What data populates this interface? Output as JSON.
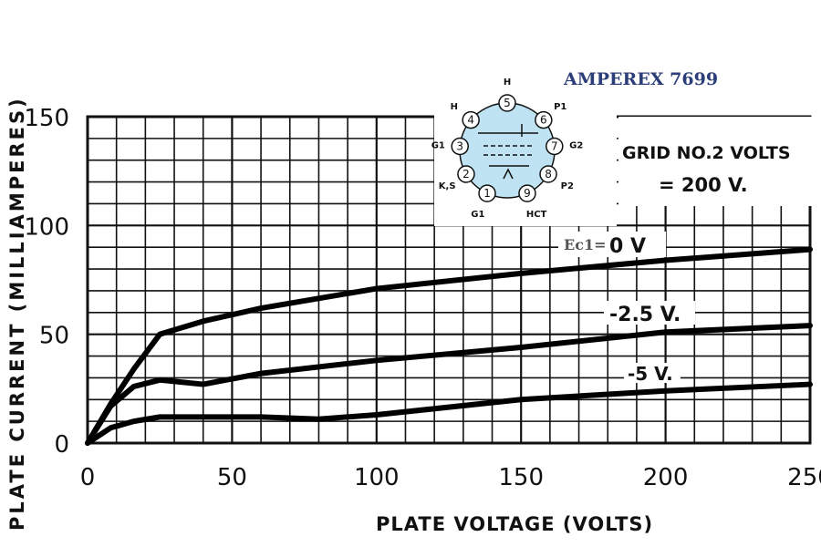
{
  "chart_data": {
    "type": "line",
    "title": "AMPEREX   7699",
    "xlabel": "PLATE  VOLTAGE (VOLTS)",
    "ylabel": "PLATE  CURRENT (MILLIAMPERES)",
    "xlim": [
      0,
      250
    ],
    "ylim": [
      0,
      150
    ],
    "xticks": [
      "0",
      "50",
      "100",
      "150",
      "200",
      "250"
    ],
    "yticks": [
      "0",
      "50",
      "100",
      "150"
    ],
    "grid": true,
    "condition_lines": [
      "GRID NO.2 VOLTS",
      "= 200 V."
    ],
    "series_prefix": "Ec1=",
    "series": [
      {
        "name": "0 V",
        "x": [
          0,
          8,
          16,
          25,
          40,
          60,
          100,
          150,
          200,
          250
        ],
        "y": [
          0,
          18,
          34,
          50,
          56,
          62,
          71,
          78,
          84,
          89
        ]
      },
      {
        "name": "-2.5 V.",
        "x": [
          0,
          8,
          16,
          25,
          40,
          60,
          100,
          150,
          200,
          250
        ],
        "y": [
          0,
          17,
          26,
          29,
          27,
          32,
          38,
          44,
          51,
          54
        ]
      },
      {
        "name": "-5 V.",
        "x": [
          0,
          8,
          16,
          25,
          40,
          60,
          80,
          100,
          150,
          200,
          250
        ],
        "y": [
          0,
          7,
          10,
          12,
          12,
          12,
          11,
          13,
          20,
          24,
          27
        ]
      }
    ]
  },
  "tube_diagram": {
    "pins": [
      "1",
      "2",
      "3",
      "4",
      "5",
      "6",
      "7",
      "8",
      "9"
    ],
    "pin_names": [
      "G1",
      "K,S",
      "G1",
      "H",
      "H",
      "P1",
      "G2",
      "P2",
      "HCT"
    ]
  }
}
